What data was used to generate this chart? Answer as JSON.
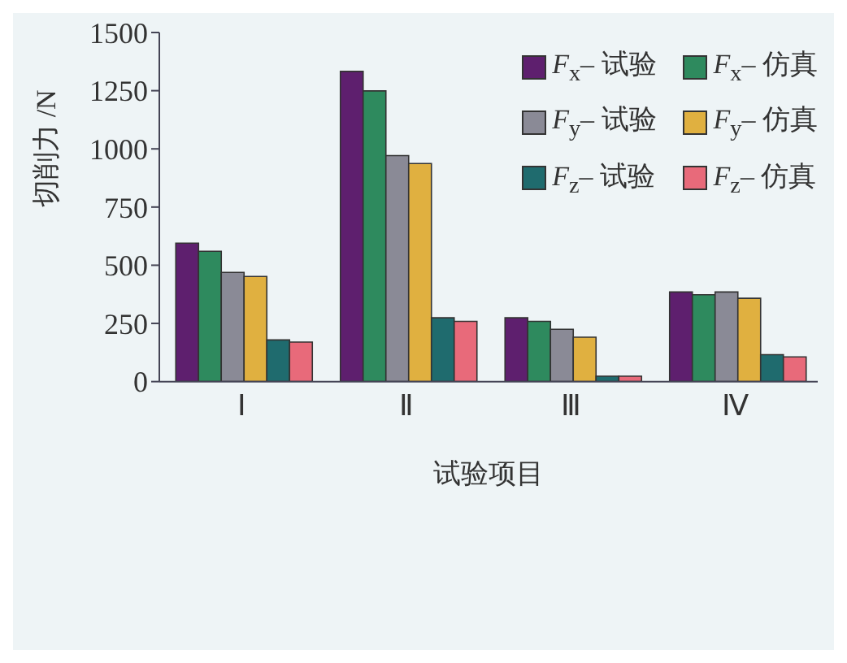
{
  "chart_data": {
    "type": "bar",
    "xlabel": "试验项目",
    "ylabel": "切削力 /N",
    "categories": [
      "Ⅰ",
      "Ⅱ",
      "Ⅲ",
      "Ⅳ"
    ],
    "series": [
      {
        "name": "F$_{x}$– 试验",
        "color": "#5e1f6e",
        "values": [
          595,
          1333,
          274,
          385
        ]
      },
      {
        "name": "F$_{x}$– 仿真",
        "color": "#2e8a5e",
        "values": [
          560,
          1249,
          259,
          373
        ]
      },
      {
        "name": "F$_{y}$– 试验",
        "color": "#8a8a96",
        "values": [
          469,
          971,
          225,
          385
        ]
      },
      {
        "name": "F$_{y}$– 仿真",
        "color": "#e0b040",
        "values": [
          452,
          937,
          191,
          358
        ]
      },
      {
        "name": "F$_{z}$– 试验",
        "color": "#1f6b6e",
        "values": [
          179,
          274,
          23,
          116
        ]
      },
      {
        "name": "F$_{z}$– 仿真",
        "color": "#e86a7a",
        "values": [
          170,
          259,
          23,
          106
        ]
      }
    ],
    "ylim": [
      0,
      1500
    ],
    "yticks": [
      0,
      250,
      500,
      750,
      1000,
      1250,
      1500
    ],
    "grid": false,
    "legend": "top right"
  }
}
